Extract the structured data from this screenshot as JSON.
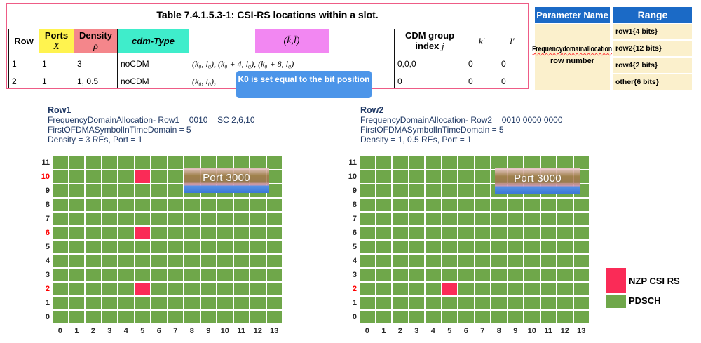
{
  "csi_table": {
    "title": "Table 7.4.1.5.3-1: CSI-RS locations within a slot.",
    "col_row": "Row",
    "col_ports": "Ports",
    "col_ports_sym": "X",
    "col_density": "Density",
    "col_density_sym": "ρ",
    "col_cdm_type": "cdm-Type",
    "col_kl": "(k̄,l̄)",
    "col_cdm_group_line1": "CDM group",
    "col_cdm_group_line2": "index",
    "col_cdm_group_sym": "j",
    "col_k_prime": "k′",
    "col_l_prime": "l′",
    "rows": [
      {
        "row": "1",
        "ports": "1",
        "density": "3",
        "cdm": "noCDM",
        "kl": "(k₀, l₀), (k₀ + 4, l₀), (k₀ + 8, l₀)",
        "cdm_group": "0,0,0",
        "k": "0",
        "l": "0"
      },
      {
        "row": "2",
        "ports": "1",
        "density": "1, 0.5",
        "cdm": "noCDM",
        "kl": "(k₀, l₀),",
        "cdm_group": "0",
        "k": "0",
        "l": "0"
      }
    ]
  },
  "callout": {
    "text": "K0 is set equal to the bit position"
  },
  "param_table": {
    "header_param": "Parameter Name",
    "header_range": "Range",
    "param_line1": "Frequencydomainallocation",
    "param_line2": "row number",
    "ranges": [
      "row1{4 bits}",
      "row2{12 bits}",
      "row4{2 bits}",
      "other{6 bits}"
    ]
  },
  "grids": [
    {
      "title": "Row1",
      "info_lines": [
        "FrequencyDomainAllocation- Row1 = 0010 = SC 2,6,10",
        "FirstOFDMASymbolInTimeDomain = 5",
        "Density = 3 REs, Port = 1"
      ],
      "port_label": "Port 3000",
      "num_rows": 12,
      "num_cols": 14,
      "y_labels": [
        "11",
        "10",
        "9",
        "8",
        "7",
        "6",
        "5",
        "4",
        "3",
        "2",
        "1",
        "0"
      ],
      "x_labels": [
        "0",
        "1",
        "2",
        "3",
        "4",
        "5",
        "6",
        "7",
        "8",
        "9",
        "10",
        "11",
        "12",
        "13"
      ],
      "red_y_labels": [
        "10",
        "6",
        "2"
      ],
      "nzp_cells": [
        {
          "symbol": 5,
          "subcarrier": 10
        },
        {
          "symbol": 5,
          "subcarrier": 6
        },
        {
          "symbol": 5,
          "subcarrier": 2
        }
      ]
    },
    {
      "title": "Row2",
      "info_lines": [
        "FrequencyDomainAllocation- Row2 = 0010 0000 0000",
        "FirstOFDMASymbolInTimeDomain = 5",
        "Density = 1, 0.5 REs, Port = 1"
      ],
      "port_label": "Port 3000",
      "num_rows": 12,
      "num_cols": 14,
      "y_labels": [
        "11",
        "10",
        "9",
        "8",
        "7",
        "6",
        "5",
        "4",
        "3",
        "2",
        "1",
        "0"
      ],
      "x_labels": [
        "0",
        "1",
        "2",
        "3",
        "4",
        "5",
        "6",
        "7",
        "8",
        "9",
        "10",
        "11",
        "12",
        "13"
      ],
      "red_y_labels": [
        "2"
      ],
      "nzp_cells": [
        {
          "symbol": 5,
          "subcarrier": 2
        }
      ]
    }
  ],
  "legend": {
    "items": [
      {
        "label": "NZP CSI RS",
        "color": "#FA2B57"
      },
      {
        "label": "PDSCH",
        "color": "#6FA74A"
      }
    ]
  },
  "colors": {
    "pink_border": "#EE5C86",
    "yellow_header": "#FFF34F",
    "salmon_header": "#F4868B",
    "cyan_header": "#3FEDCB",
    "magenta_highlight": "#F287F2",
    "callout_blue": "#4C95E9",
    "param_header_blue": "#1B6AC6",
    "param_body_cream": "#FBF0CC",
    "grid_green": "#6FA74A",
    "grid_red": "#FA2B57",
    "navy_text": "#1F3864"
  }
}
